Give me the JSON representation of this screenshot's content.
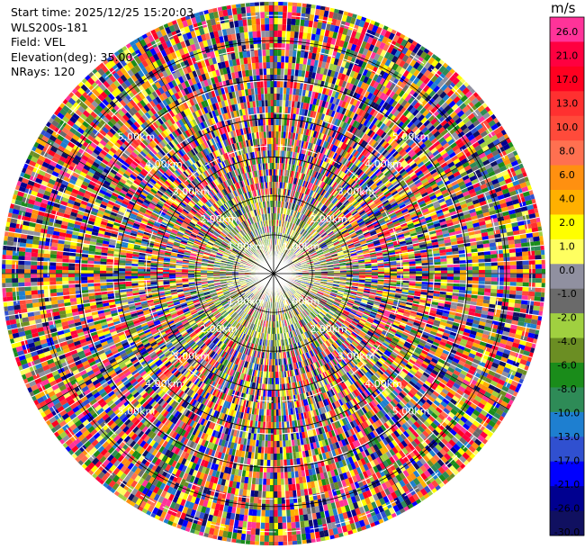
{
  "info": {
    "start_time": "Start time: 2025/12/25 15:20:03",
    "site": "WLS200s-181",
    "field": "Field: VEL",
    "elevation": "Elevation(deg): 35.00",
    "nrays": "NRays: 120"
  },
  "chart_data": {
    "type": "heatmap",
    "projection": "polar-ppi",
    "field": "VEL",
    "elevation_deg": 35.0,
    "n_rays": 120,
    "max_range_km": 7.0,
    "range_ring_labels": [
      "1.00km",
      "2.00km",
      "3.00km",
      "4.00km",
      "5.00km"
    ],
    "colorbar": {
      "unit": "m/s",
      "tick_labels": [
        "26.0",
        "21.0",
        "17.0",
        "13.0",
        "10.0",
        "8.0",
        "6.0",
        "4.0",
        "2.0",
        "1.0",
        "0.0",
        "-1.0",
        "-2.0",
        "-4.0",
        "-6.0",
        "-8.0",
        "-10.0",
        "-13.0",
        "-17.0",
        "-21.0",
        "-26.0",
        "-30.0"
      ],
      "bin_colors": [
        "#ff3399",
        "#ff0040",
        "#ff0020",
        "#ff3030",
        "#ff4a3a",
        "#ff7050",
        "#ff9010",
        "#ffb000",
        "#ffff00",
        "#ffff60",
        "#9090a0",
        "#6a6a6a",
        "#a0d040",
        "#6b8e23",
        "#1a8c1a",
        "#2e8b57",
        "#1e7fd0",
        "#3050d0",
        "#0000ff",
        "#000090",
        "#101060"
      ]
    }
  }
}
